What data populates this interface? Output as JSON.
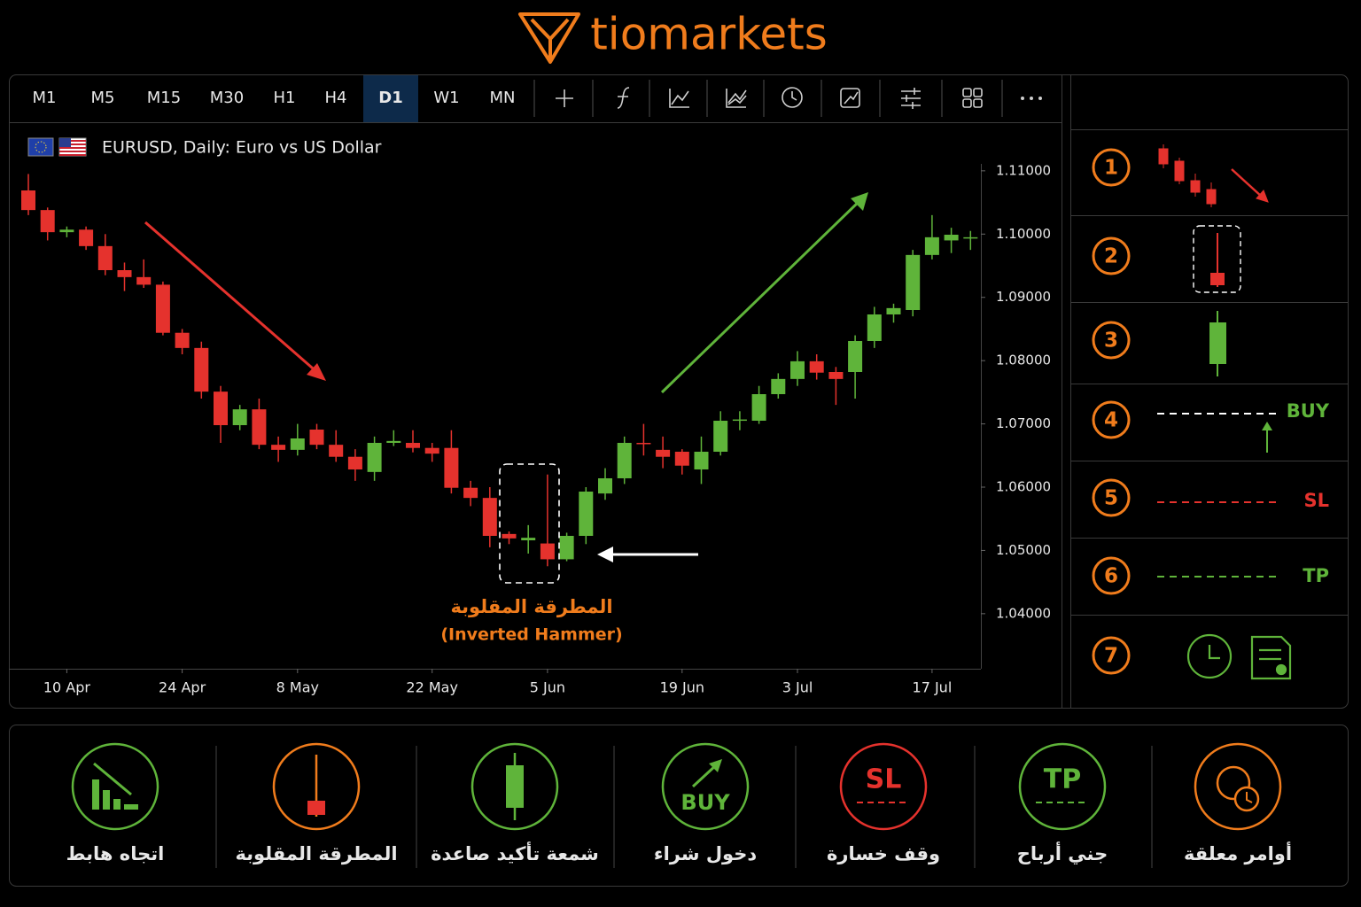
{
  "header": {
    "logo": "tiomarkets"
  },
  "toolbar": {
    "timeframes": [
      "M1",
      "M5",
      "M15",
      "M30",
      "H1",
      "H4",
      "D1",
      "W1",
      "MN"
    ],
    "active": "D1"
  },
  "chart_data": {
    "type": "candlestick",
    "title": "EURUSD, Daily:  Euro vs US Dollar",
    "categories": [
      null,
      null,
      "10 Apr",
      null,
      null,
      null,
      null,
      null,
      "24 Apr",
      null,
      null,
      null,
      null,
      null,
      "8 May",
      null,
      null,
      null,
      null,
      null,
      null,
      "22 May",
      null,
      null,
      null,
      null,
      null,
      "5 Jun",
      null,
      null,
      null,
      null,
      null,
      null,
      "19 Jun",
      null,
      null,
      null,
      null,
      null,
      "3 Jul",
      null,
      null,
      null,
      null,
      null,
      null,
      "17 Jul",
      null,
      null
    ],
    "open": [
      1.1069,
      1.1038,
      1.1003,
      1.1007,
      1.0981,
      1.0943,
      1.0932,
      1.092,
      1.0844,
      1.082,
      1.0751,
      1.0698,
      1.0723,
      1.0667,
      1.0659,
      1.0691,
      1.0667,
      1.0648,
      1.0624,
      1.067,
      1.067,
      1.0662,
      1.0662,
      1.0599,
      1.0583,
      1.0526,
      1.0516,
      1.0511,
      1.0486,
      1.0523,
      1.059,
      1.0614,
      1.067,
      1.0659,
      1.0656,
      1.0628,
      1.0656,
      1.0705,
      1.0705,
      1.0747,
      1.0771,
      1.0799,
      1.0782,
      1.0782,
      1.0831,
      1.0873,
      1.088,
      1.0967,
      1.099,
      1.0993
    ],
    "high": [
      1.1095,
      1.1042,
      1.1012,
      1.1012,
      1.1,
      1.0955,
      1.096,
      1.0925,
      1.085,
      1.083,
      1.076,
      1.073,
      1.074,
      1.068,
      1.07,
      1.07,
      1.069,
      1.066,
      1.068,
      1.069,
      1.069,
      1.067,
      1.069,
      1.061,
      1.06,
      1.053,
      1.054,
      1.062,
      1.0528,
      1.06,
      1.063,
      1.068,
      1.07,
      1.068,
      1.066,
      1.068,
      1.072,
      1.072,
      1.076,
      1.078,
      1.0815,
      1.081,
      1.079,
      1.084,
      1.0885,
      1.089,
      1.0975,
      1.103,
      1.101,
      1.1005
    ],
    "low": [
      1.103,
      1.099,
      1.0995,
      1.0975,
      1.0935,
      1.091,
      1.0915,
      1.084,
      1.081,
      1.074,
      1.067,
      1.069,
      1.066,
      1.064,
      1.065,
      1.066,
      1.064,
      1.061,
      1.061,
      1.0665,
      1.0655,
      1.064,
      1.059,
      1.057,
      1.0505,
      1.051,
      1.0495,
      1.0475,
      1.0483,
      1.051,
      1.058,
      1.0605,
      1.065,
      1.063,
      1.062,
      1.0605,
      1.065,
      1.069,
      1.07,
      1.074,
      1.076,
      1.077,
      1.073,
      1.074,
      1.082,
      1.086,
      1.087,
      1.096,
      1.097,
      1.0975
    ],
    "close": [
      1.1038,
      1.1003,
      1.1007,
      1.0981,
      1.0943,
      1.0932,
      1.092,
      1.0844,
      1.082,
      1.0751,
      1.0698,
      1.0723,
      1.0667,
      1.0659,
      1.0677,
      1.0667,
      1.0648,
      1.0628,
      1.067,
      1.0673,
      1.0662,
      1.0653,
      1.0599,
      1.0583,
      1.0523,
      1.0519,
      1.052,
      1.0486,
      1.0523,
      1.0593,
      1.0614,
      1.067,
      1.0668,
      1.0648,
      1.0634,
      1.0656,
      1.0705,
      1.0707,
      1.0747,
      1.0771,
      1.0799,
      1.0781,
      1.0771,
      1.0831,
      1.0873,
      1.0883,
      1.0967,
      1.0995,
      1.0999,
      1.0995
    ],
    "up_color": "#5fb43a",
    "down_color": "#e5322d",
    "ylim": [
      1.0313,
      1.1118
    ],
    "yticks": [
      {
        "value": 1.04,
        "label": "1.04000"
      },
      {
        "value": 1.05,
        "label": "1.05000"
      },
      {
        "value": 1.06,
        "label": "1.06000"
      },
      {
        "value": 1.07,
        "label": "1.07000"
      },
      {
        "value": 1.08,
        "label": "1.08000"
      },
      {
        "value": 1.09,
        "label": "1.09000"
      },
      {
        "value": 1.1,
        "label": "1.10000"
      },
      {
        "value": 1.11,
        "label": "1.11000"
      }
    ],
    "annotation": {
      "text": "المطرقة المقلوبة",
      "subtext": "(Inverted Hammer)",
      "color": "#f07c1c"
    }
  },
  "right_panel": {
    "steps": [
      {
        "number": 1
      },
      {
        "number": 2
      },
      {
        "number": 3
      },
      {
        "number": 4,
        "label": "BUY",
        "color": "#5fb43a"
      },
      {
        "number": 5,
        "label": "SL",
        "color": "#e5322d"
      },
      {
        "number": 6,
        "label": "TP",
        "color": "#5fb43a"
      },
      {
        "number": 7
      }
    ]
  },
  "bottom_bar": {
    "items": [
      {
        "label": "اتجاه هابط",
        "color": "#5fb43a"
      },
      {
        "label": "المطرقة المقلوبة",
        "color": "#f07c1c"
      },
      {
        "label": "شمعة تأكيد صاعدة",
        "color": "#5fb43a"
      },
      {
        "label": "دخول شراء",
        "color": "#5fb43a",
        "icon_text": "BUY"
      },
      {
        "label": "وقف خسارة",
        "color": "#e5322d",
        "icon_text": "SL"
      },
      {
        "label": "جني أرباح",
        "color": "#5fb43a",
        "icon_text": "TP"
      },
      {
        "label": "أوامر معلقة",
        "color": "#f07c1c"
      }
    ]
  }
}
